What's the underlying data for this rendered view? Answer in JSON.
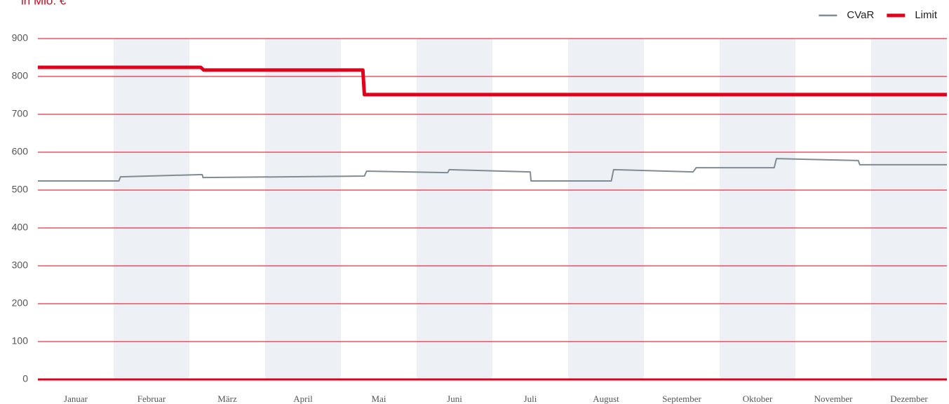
{
  "chart_data": {
    "type": "line",
    "title": "in Mio. €",
    "categories": [
      "Januar",
      "Februar",
      "März",
      "April",
      "Mai",
      "Juni",
      "Juli",
      "August",
      "September",
      "Oktober",
      "November",
      "Dezember"
    ],
    "xlim": [
      0,
      12
    ],
    "ylim": [
      0,
      900
    ],
    "yticks": [
      0,
      100,
      200,
      300,
      400,
      500,
      600,
      700,
      800,
      900
    ],
    "grid": true,
    "legend": "top-right",
    "series": [
      {
        "name": "CVaR",
        "color": "#7f8c93",
        "x": [
          0,
          1.07,
          1.09,
          2.17,
          2.18,
          4.31,
          4.34,
          5.41,
          5.43,
          6.5,
          6.51,
          7.57,
          7.6,
          8.65,
          8.69,
          9.72,
          9.75,
          10.83,
          10.85,
          12
        ],
        "values": [
          524,
          524,
          535,
          541,
          533,
          537,
          550,
          546,
          554,
          548,
          524,
          524,
          554,
          548,
          559,
          559,
          583,
          578,
          567,
          567
        ]
      },
      {
        "name": "Limit",
        "color": "#e2001a",
        "x": [
          0,
          2.15,
          2.19,
          4.29,
          4.31,
          12
        ],
        "values": [
          824,
          824,
          817,
          817,
          752,
          752
        ]
      }
    ]
  }
}
